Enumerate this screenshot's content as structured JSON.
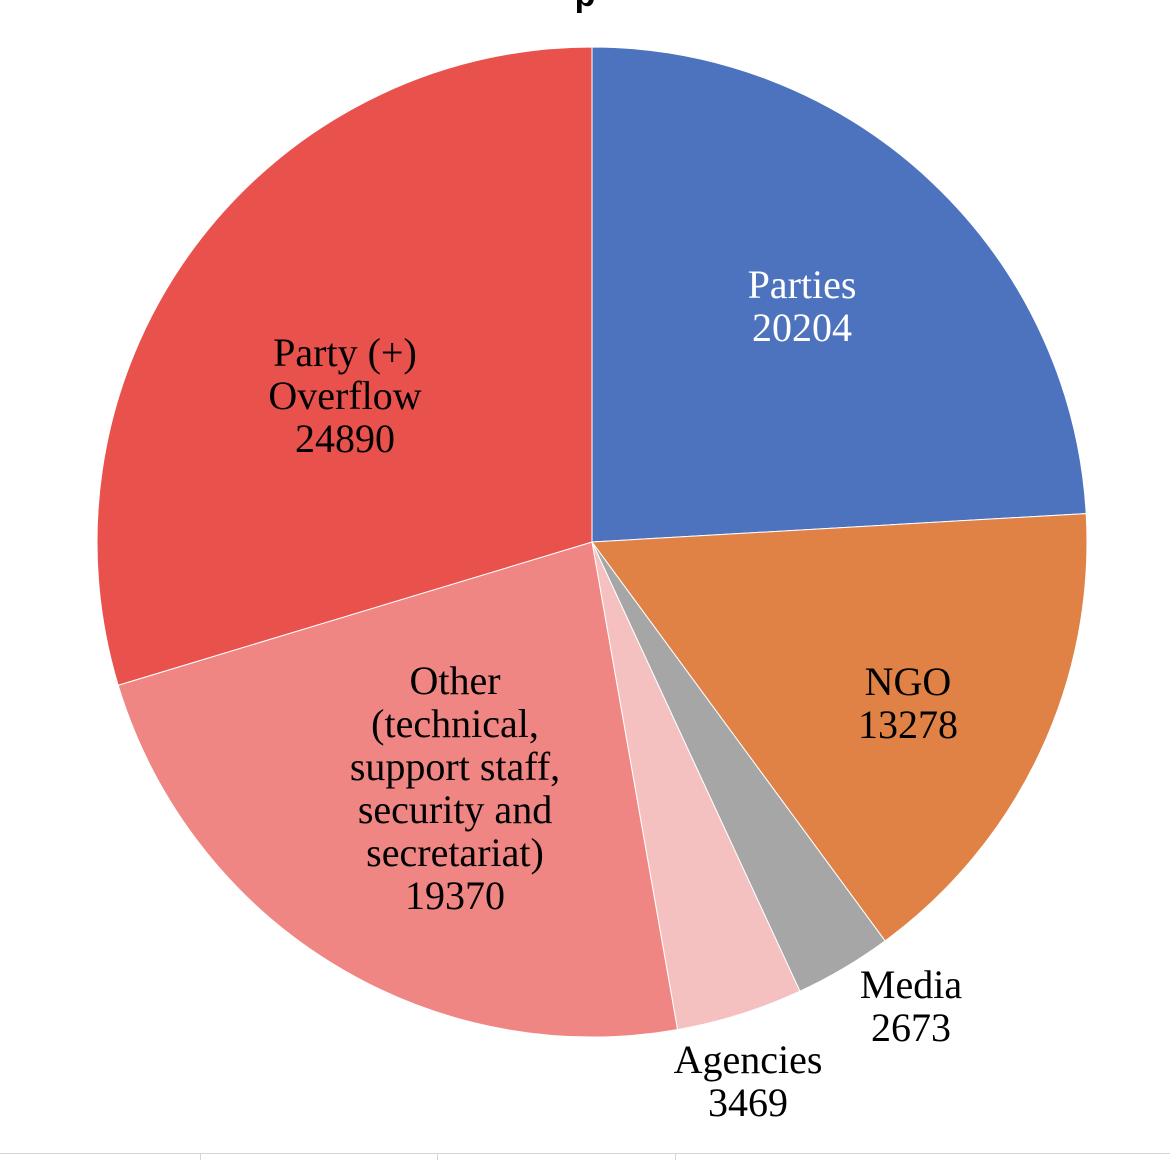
{
  "chart_data": {
    "type": "pie",
    "title": "",
    "start_angle_deg": 0,
    "direction": "clockwise",
    "slices": [
      {
        "label_lines": [
          "Parties"
        ],
        "value": 20204,
        "color": "#4e73be",
        "text_color": "#ffffff"
      },
      {
        "label_lines": [
          "NGO"
        ],
        "value": 13278,
        "color": "#e08245",
        "text_color": "#000000"
      },
      {
        "label_lines": [
          "Media"
        ],
        "value": 2673,
        "color": "#a6a6a6",
        "text_color": "#000000"
      },
      {
        "label_lines": [
          "Agencies"
        ],
        "value": 3469,
        "color": "#f4c0c0",
        "text_color": "#000000"
      },
      {
        "label_lines": [
          "Other",
          "(technical,",
          "support staff,",
          "security and",
          "secretariat)"
        ],
        "value": 19370,
        "color": "#ef8683",
        "text_color": "#000000"
      },
      {
        "label_lines": [
          "Party (+)",
          "Overflow"
        ],
        "value": 24890,
        "color": "#e9524c",
        "text_color": "#000000"
      }
    ]
  }
}
